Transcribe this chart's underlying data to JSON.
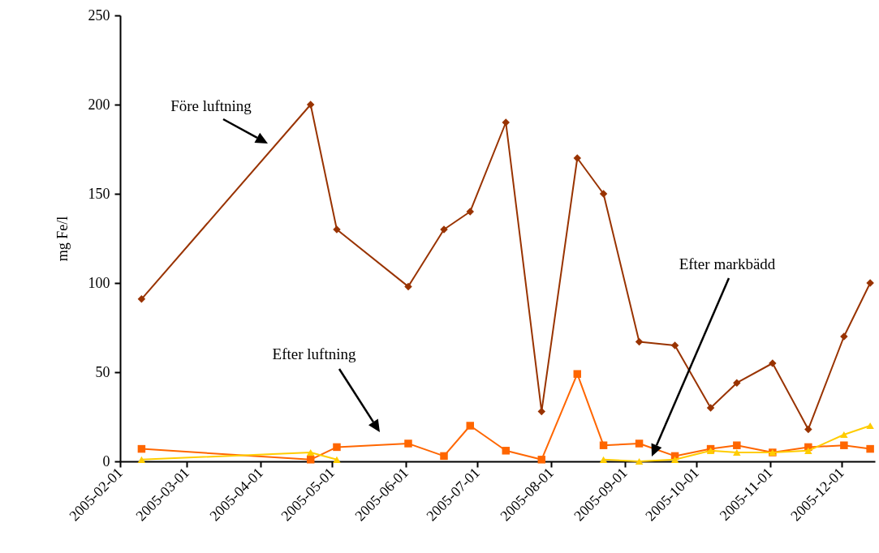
{
  "chart_data": {
    "type": "line",
    "ylabel": "mg Fe/l",
    "x": [
      "2005-02-10",
      "2005-04-22",
      "2005-05-03",
      "2005-06-02",
      "2005-06-17",
      "2005-06-28",
      "2005-07-13",
      "2005-07-28",
      "2005-08-12",
      "2005-08-23",
      "2005-09-07",
      "2005-09-22",
      "2005-10-07",
      "2005-10-18",
      "2005-11-02",
      "2005-11-17",
      "2005-12-02",
      "2005-12-13"
    ],
    "series": [
      {
        "name": "Före luftning",
        "color": "#993300",
        "marker": "diamond",
        "values": [
          91,
          200,
          130,
          98,
          130,
          140,
          190,
          28,
          170,
          150,
          67,
          65,
          30,
          44,
          55,
          18,
          70,
          100
        ]
      },
      {
        "name": "Efter luftning",
        "color": "#ff6600",
        "marker": "square",
        "values": [
          7,
          1,
          8,
          10,
          3,
          20,
          6,
          1,
          49,
          9,
          10,
          3,
          7,
          9,
          5,
          8,
          9,
          7
        ]
      },
      {
        "name": "Efter markbädd",
        "color": "#ffcc00",
        "marker": "triangle",
        "values": [
          1,
          5,
          1,
          null,
          null,
          null,
          null,
          null,
          null,
          1,
          0,
          1,
          6,
          5,
          5,
          6,
          15,
          20
        ]
      }
    ],
    "xlim": [
      "2005-02-01",
      "2005-12-15"
    ],
    "xticks": [
      "2005-02-01",
      "2005-03-01",
      "2005-04-01",
      "2005-05-01",
      "2005-06-01",
      "2005-07-01",
      "2005-08-01",
      "2005-09-01",
      "2005-10-01",
      "2005-11-01",
      "2005-12-01"
    ],
    "ylim": [
      0,
      250
    ],
    "yticks": [
      0,
      50,
      100,
      150,
      200,
      250
    ],
    "grid": false,
    "legend": false
  }
}
